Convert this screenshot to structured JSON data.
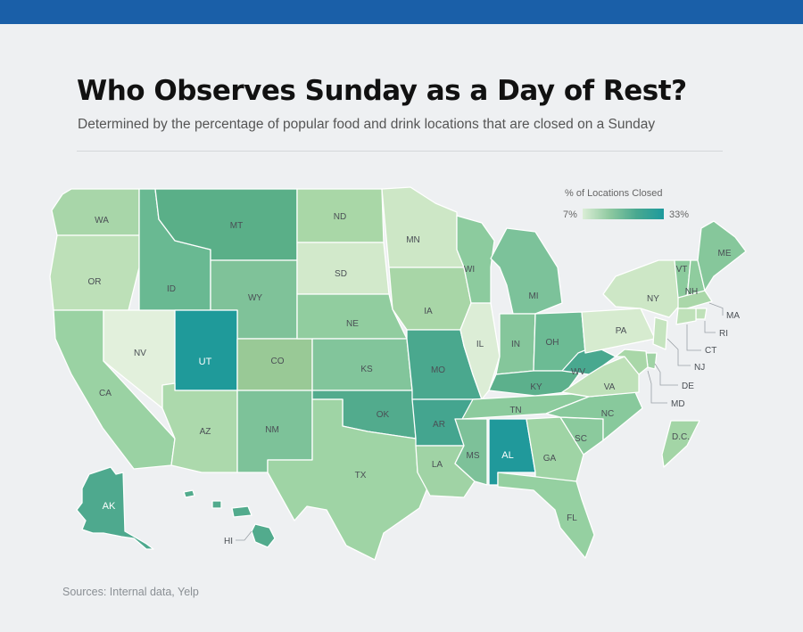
{
  "header": {
    "title": "Who Observes Sunday as a Day of Rest?",
    "subtitle": "Determined by the percentage of popular food and drink locations that are closed on a Sunday"
  },
  "legend": {
    "title": "% of Locations Closed",
    "min_label": "7%",
    "max_label": "33%",
    "min_value": 7,
    "max_value": 33,
    "colors": [
      "#dbeed6",
      "#8fc9a0",
      "#48a890",
      "#1d9a9d"
    ]
  },
  "footer": {
    "sources": "Sources: Internal data, Yelp"
  },
  "states": [
    {
      "code": "WA",
      "label": "WA",
      "color": "#a8d6a9"
    },
    {
      "code": "OR",
      "label": "OR",
      "color": "#bde0b8"
    },
    {
      "code": "CA",
      "label": "CA",
      "color": "#9ad2a3"
    },
    {
      "code": "NV",
      "label": "NV",
      "color": "#e2f0dc"
    },
    {
      "code": "ID",
      "label": "ID",
      "color": "#69b992"
    },
    {
      "code": "MT",
      "label": "MT",
      "color": "#5aaf88"
    },
    {
      "code": "WY",
      "label": "WY",
      "color": "#7fc299"
    },
    {
      "code": "UT",
      "label": "UT",
      "color": "#1f9a9a"
    },
    {
      "code": "CO",
      "label": "CO",
      "color": "#99c996"
    },
    {
      "code": "AZ",
      "label": "AZ",
      "color": "#acd9ac"
    },
    {
      "code": "NM",
      "label": "NM",
      "color": "#7dc299"
    },
    {
      "code": "ND",
      "label": "ND",
      "color": "#a9d7a7"
    },
    {
      "code": "SD",
      "label": "SD",
      "color": "#d2e9cb"
    },
    {
      "code": "NE",
      "label": "NE",
      "color": "#91cd9f"
    },
    {
      "code": "KS",
      "label": "KS",
      "color": "#82c59b"
    },
    {
      "code": "OK",
      "label": "OK",
      "color": "#52ab8d"
    },
    {
      "code": "TX",
      "label": "TX",
      "color": "#9fd4a5"
    },
    {
      "code": "MN",
      "label": "MN",
      "color": "#cde7c6"
    },
    {
      "code": "IA",
      "label": "IA",
      "color": "#a8d6a7"
    },
    {
      "code": "MO",
      "label": "MO",
      "color": "#4aa88e"
    },
    {
      "code": "AR",
      "label": "AR",
      "color": "#44a58f"
    },
    {
      "code": "LA",
      "label": "LA",
      "color": "#a0d3a5"
    },
    {
      "code": "WI",
      "label": "WI",
      "color": "#8ccb9e"
    },
    {
      "code": "IL",
      "label": "IL",
      "color": "#dcedd6"
    },
    {
      "code": "MI",
      "label": "MI",
      "color": "#7cc29a"
    },
    {
      "code": "IN",
      "label": "IN",
      "color": "#85c69b"
    },
    {
      "code": "OH",
      "label": "OH",
      "color": "#6cbb94"
    },
    {
      "code": "KY",
      "label": "KY",
      "color": "#5cb08c"
    },
    {
      "code": "TN",
      "label": "TN",
      "color": "#8ccb9d"
    },
    {
      "code": "MS",
      "label": "MS",
      "color": "#7dc199"
    },
    {
      "code": "AL",
      "label": "AL",
      "color": "#20999b"
    },
    {
      "code": "GA",
      "label": "GA",
      "color": "#9fd4a5"
    },
    {
      "code": "FL",
      "label": "FL",
      "color": "#95d0a1"
    },
    {
      "code": "SC",
      "label": "SC",
      "color": "#8bca9d"
    },
    {
      "code": "NC",
      "label": "NC",
      "color": "#88c99c"
    },
    {
      "code": "VA",
      "label": "VA",
      "color": "#bfe1b9"
    },
    {
      "code": "WV",
      "label": "WV",
      "color": "#49a88f"
    },
    {
      "code": "PA",
      "label": "PA",
      "color": "#d6ebcf"
    },
    {
      "code": "NY",
      "label": "NY",
      "color": "#cde7c6"
    },
    {
      "code": "VT",
      "label": "VT",
      "color": "#8ccb9d"
    },
    {
      "code": "NH",
      "label": "NH",
      "color": "#8fcc9e"
    },
    {
      "code": "ME",
      "label": "ME",
      "color": "#86c79b"
    },
    {
      "code": "MA",
      "label": "MA",
      "color": "#aad7a9"
    },
    {
      "code": "RI",
      "label": "RI",
      "color": "#bfe1b9"
    },
    {
      "code": "CT",
      "label": "CT",
      "color": "#bfe1b9"
    },
    {
      "code": "NJ",
      "label": "NJ",
      "color": "#c5e4bf"
    },
    {
      "code": "DE",
      "label": "DE",
      "color": "#a0d3a5"
    },
    {
      "code": "MD",
      "label": "MD",
      "color": "#a9d7a8"
    },
    {
      "code": "DC",
      "label": "D.C.",
      "color": "#a3d5a6"
    },
    {
      "code": "AK",
      "label": "AK",
      "color": "#4ea98e"
    },
    {
      "code": "HI",
      "label": "HI",
      "color": "#52ab8d"
    }
  ]
}
